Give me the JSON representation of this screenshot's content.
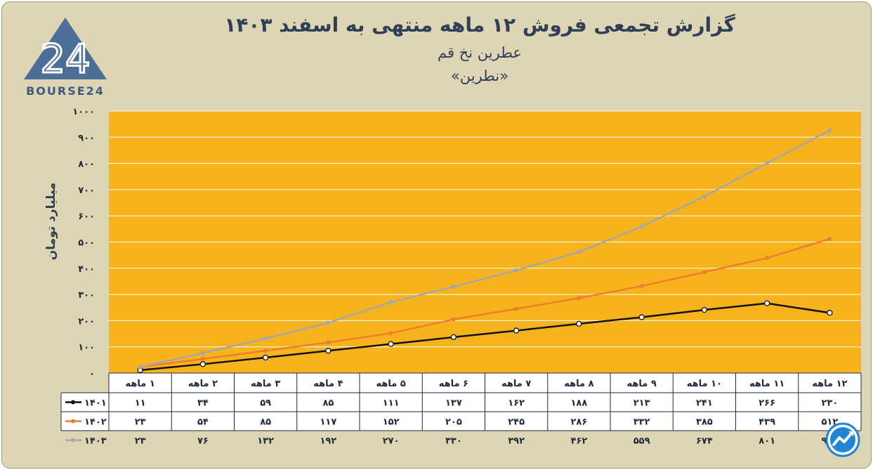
{
  "header": {
    "title": "گزارش تجمعی فروش ۱۲ ماهه منتهی به اسفند ۱۴۰۳",
    "company": "عطرین نخ قم",
    "symbol": "«نطرین»"
  },
  "logo": {
    "text": "BOURSE24",
    "numeral": "24",
    "color": "#4c6f98"
  },
  "chart_data": {
    "type": "line",
    "ylabel": "میلیارد تومان",
    "ylim": [
      0,
      1000
    ],
    "yticks": [
      0,
      100,
      200,
      300,
      400,
      500,
      600,
      700,
      800,
      900,
      1000
    ],
    "ytick_labels": [
      "۰",
      "۱۰۰",
      "۲۰۰",
      "۳۰۰",
      "۴۰۰",
      "۵۰۰",
      "۶۰۰",
      "۷۰۰",
      "۸۰۰",
      "۹۰۰",
      "۱۰۰۰"
    ],
    "categories": [
      "۱ ماهه",
      "۲ ماهه",
      "۳ ماهه",
      "۴ ماهه",
      "۵ ماهه",
      "۶ ماهه",
      "۷ ماهه",
      "۸ ماهه",
      "۹ ماهه",
      "۱۰ ماهه",
      "۱۱ ماهه",
      "۱۲ ماهه"
    ],
    "grid": true,
    "plot_background": "#f6b31c",
    "data_table": true,
    "series": [
      {
        "name": "۱۴۰۱",
        "color": "#111111",
        "values": [
          11,
          34,
          59,
          85,
          111,
          137,
          162,
          188,
          213,
          241,
          266,
          230
        ],
        "value_labels": [
          "۱۱",
          "۳۴",
          "۵۹",
          "۸۵",
          "۱۱۱",
          "۱۳۷",
          "۱۶۲",
          "۱۸۸",
          "۲۱۳",
          "۲۴۱",
          "۲۶۶",
          "۲۳۰"
        ]
      },
      {
        "name": "۱۴۰۲",
        "color": "#ec7e2c",
        "values": [
          23,
          54,
          85,
          117,
          152,
          205,
          245,
          286,
          332,
          385,
          439,
          512
        ],
        "value_labels": [
          "۲۳",
          "۵۴",
          "۸۵",
          "۱۱۷",
          "۱۵۲",
          "۲۰۵",
          "۲۴۵",
          "۲۸۶",
          "۳۳۲",
          "۳۸۵",
          "۴۳۹",
          "۵۱۲"
        ]
      },
      {
        "name": "۱۴۰۳",
        "color": "#a7a7a7",
        "values": [
          23,
          76,
          132,
          192,
          270,
          330,
          392,
          462,
          559,
          674,
          801,
          926
        ],
        "value_labels": [
          "۲۳",
          "۷۶",
          "۱۳۲",
          "۱۹۲",
          "۲۷۰",
          "۳۳۰",
          "۳۹۲",
          "۴۶۲",
          "۵۵۹",
          "۶۷۴",
          "۸۰۱",
          "۹۲۶"
        ]
      }
    ]
  },
  "badge": {
    "color": "#1f86d6",
    "icon": "trend-arrow-icon"
  }
}
